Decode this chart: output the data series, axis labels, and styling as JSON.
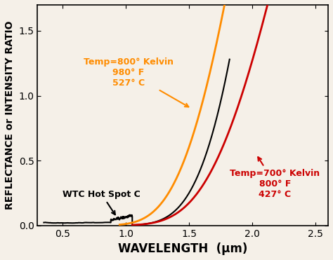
{
  "title": "",
  "xlabel": "WAVELENGTH  (μm)",
  "ylabel": "REFLECTANCE or INTENSITY RATIO",
  "xlim": [
    0.3,
    2.6
  ],
  "ylim": [
    0.0,
    1.7
  ],
  "xticks": [
    0.5,
    1.0,
    1.5,
    2.0,
    2.5
  ],
  "yticks": [
    0.0,
    0.5,
    1.0,
    1.5
  ],
  "background_color": "#f5f0e8",
  "line_800K_color": "#FF8C00",
  "line_700K_color": "#CC0000",
  "line_wtc_color": "#000000",
  "annotation_800K": "Temp=800° Kelvin\n980° F\n527° C",
  "annotation_700K": "Temp=700° Kelvin\n800° F\n427° C",
  "annotation_wtc": "WTC Hot Spot C",
  "xlabel_fontsize": 12,
  "ylabel_fontsize": 10,
  "tick_fontsize": 10
}
